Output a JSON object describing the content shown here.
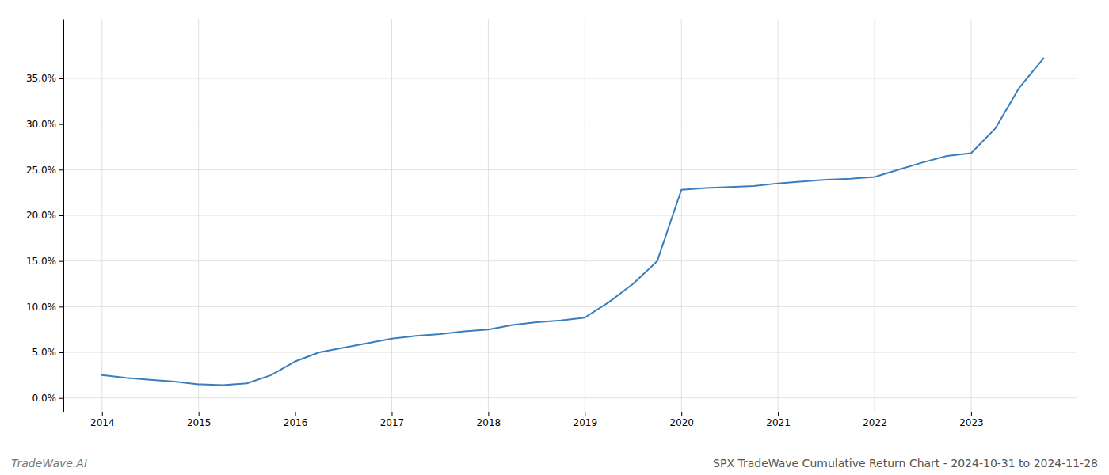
{
  "chart_data": {
    "type": "line",
    "title": "SPX TradeWave Cumulative Return Chart - 2024-10-31 to 2024-11-28",
    "annotations": [
      "TradeWave.AI"
    ],
    "x": [
      2014.0,
      2014.25,
      2014.5,
      2014.75,
      2015.0,
      2015.25,
      2015.5,
      2015.75,
      2016.0,
      2016.25,
      2016.5,
      2016.75,
      2017.0,
      2017.25,
      2017.5,
      2017.75,
      2018.0,
      2018.25,
      2018.5,
      2018.75,
      2019.0,
      2019.25,
      2019.5,
      2019.75,
      2020.0,
      2020.25,
      2020.5,
      2020.75,
      2021.0,
      2021.25,
      2021.5,
      2021.75,
      2022.0,
      2022.25,
      2022.5,
      2022.75,
      2023.0,
      2023.25,
      2023.5,
      2023.75
    ],
    "values": [
      0.025,
      0.022,
      0.02,
      0.018,
      0.015,
      0.014,
      0.016,
      0.025,
      0.04,
      0.05,
      0.055,
      0.06,
      0.065,
      0.068,
      0.07,
      0.073,
      0.075,
      0.08,
      0.083,
      0.085,
      0.088,
      0.105,
      0.125,
      0.15,
      0.228,
      0.23,
      0.231,
      0.232,
      0.235,
      0.237,
      0.239,
      0.24,
      0.242,
      0.25,
      0.258,
      0.265,
      0.268,
      0.295,
      0.34,
      0.372
    ],
    "color": "#3a7ebf",
    "xlim": [
      2013.6,
      2024.1
    ],
    "ylim": [
      -0.015,
      0.415
    ],
    "xticks": [
      2014,
      2015,
      2016,
      2017,
      2018,
      2019,
      2020,
      2021,
      2022,
      2023
    ],
    "yticks": [
      {
        "value": 0.0,
        "label": "0.0%"
      },
      {
        "value": 0.05,
        "label": "5.0%"
      },
      {
        "value": 0.1,
        "label": "10.0%"
      },
      {
        "value": 0.15,
        "label": "15.0%"
      },
      {
        "value": 0.2,
        "label": "20.0%"
      },
      {
        "value": 0.25,
        "label": "25.0%"
      },
      {
        "value": 0.3,
        "label": "30.0%"
      },
      {
        "value": 0.35,
        "label": "35.0%"
      }
    ],
    "grid": true
  }
}
